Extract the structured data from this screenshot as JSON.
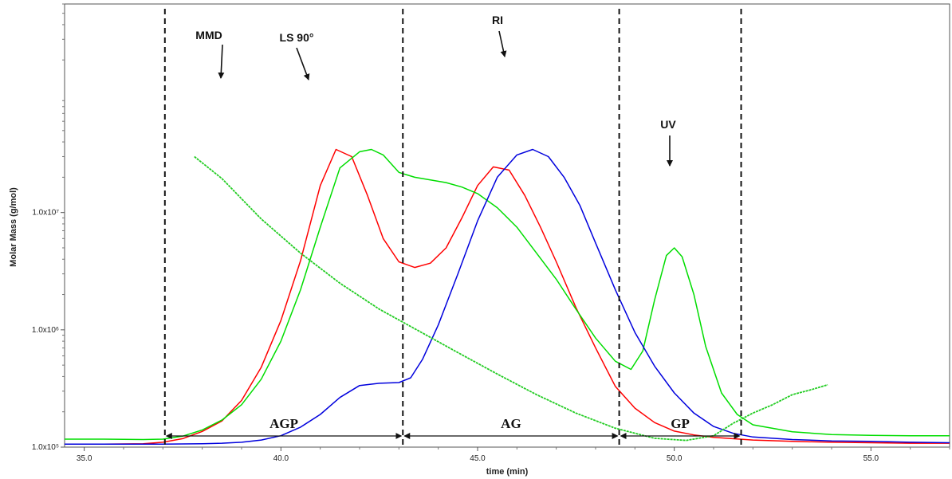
{
  "chart_data": {
    "type": "line",
    "title": "",
    "xlabel": "time (min)",
    "ylabel": "Molar Mass (g/mol)",
    "xlim": [
      34.5,
      57.0
    ],
    "ylim": [
      100000,
      600000000
    ],
    "y_scale": "log",
    "grid": false,
    "x_ticks": [
      35,
      40,
      45,
      50,
      55
    ],
    "x_tick_labels": [
      "35.0",
      "40.0",
      "45.0",
      "50.0",
      "55.0"
    ],
    "y_ticks": [
      100000,
      1000000,
      10000000
    ],
    "y_tick_labels": [
      "1.0x10⁵",
      "1.0x10⁶",
      "1.0x10⁷"
    ],
    "series": [
      {
        "name": "LS 90°",
        "color": "#ff0000",
        "x": [
          34.5,
          35.5,
          36.5,
          37.0,
          37.5,
          38.0,
          38.5,
          39.0,
          39.5,
          40.0,
          40.5,
          41.0,
          41.4,
          41.8,
          42.2,
          42.6,
          43.0,
          43.4,
          43.8,
          44.2,
          44.6,
          45.0,
          45.4,
          45.8,
          46.2,
          46.6,
          47.0,
          47.5,
          48.0,
          48.5,
          49.0,
          49.5,
          50.0,
          50.5,
          51.0,
          52.0,
          53.0,
          54.0,
          55.0,
          56.0,
          57.0
        ],
        "y": [
          106000,
          106000,
          107000,
          110000,
          118000,
          136000,
          167000,
          250000,
          480000,
          1200000,
          3900000,
          17000000,
          34500000,
          30000000,
          14000000,
          6000000,
          3800000,
          3400000,
          3700000,
          5000000,
          9000000,
          17000000,
          24500000,
          23000000,
          14000000,
          7500000,
          3800000,
          1550000,
          700000,
          330000,
          215000,
          162000,
          137000,
          127000,
          121000,
          115000,
          112000,
          110000,
          109000,
          108000,
          108000
        ]
      },
      {
        "name": "",
        "color": "#00dd00",
        "x": [
          34.5,
          35.5,
          36.5,
          37.0,
          37.5,
          38.0,
          38.5,
          39.0,
          39.5,
          40.0,
          40.5,
          41.0,
          41.5,
          42.0,
          42.3,
          42.6,
          43.0,
          43.4,
          43.8,
          44.2,
          44.6,
          45.0,
          45.5,
          46.0,
          46.5,
          47.0,
          47.5,
          48.0,
          48.5,
          48.9,
          49.2,
          49.5,
          49.8,
          50.0,
          50.2,
          50.5,
          50.8,
          51.2,
          51.6,
          52.0,
          53.0,
          54.0,
          55.0,
          56.0,
          57.0
        ],
        "y": [
          117000,
          117000,
          116000,
          117000,
          124000,
          140000,
          170000,
          230000,
          380000,
          800000,
          2200000,
          7500000,
          24000000,
          33000000,
          34500000,
          31000000,
          22000000,
          20000000,
          19000000,
          18000000,
          16500000,
          14500000,
          11000000,
          7500000,
          4500000,
          2700000,
          1500000,
          850000,
          540000,
          460000,
          660000,
          1800000,
          4300000,
          5000000,
          4200000,
          2000000,
          720000,
          290000,
          190000,
          155000,
          135000,
          128000,
          126000,
          125000,
          125000
        ]
      },
      {
        "name": "RI",
        "color": "#0000dd",
        "x": [
          34.5,
          35.5,
          36.5,
          37.0,
          38.0,
          38.5,
          39.0,
          39.5,
          40.0,
          40.5,
          41.0,
          41.5,
          42.0,
          42.5,
          43.0,
          43.3,
          43.6,
          44.0,
          44.5,
          45.0,
          45.5,
          46.0,
          46.4,
          46.8,
          47.2,
          47.6,
          48.0,
          48.5,
          49.0,
          49.5,
          50.0,
          50.5,
          51.0,
          51.5,
          52.0,
          53.0,
          54.0,
          55.0,
          56.0,
          57.0
        ],
        "y": [
          106000,
          106000,
          106000,
          106000,
          107000,
          108000,
          110000,
          115000,
          125000,
          148000,
          190000,
          265000,
          335000,
          350000,
          355000,
          390000,
          560000,
          1100000,
          3000000,
          8500000,
          20000000,
          31000000,
          34500000,
          30000000,
          20000000,
          11500000,
          5500000,
          2200000,
          950000,
          490000,
          290000,
          195000,
          150000,
          131000,
          122000,
          116000,
          113000,
          112000,
          110000,
          109000
        ]
      },
      {
        "name": "MMD",
        "color": "#22cc22",
        "x": [
          37.8,
          38.5,
          39.5,
          40.5,
          41.5,
          42.5,
          43.5,
          44.5,
          45.5,
          46.5,
          47.5,
          48.5,
          49.5,
          50.3,
          51.0,
          51.5,
          52.0,
          52.5,
          53.0,
          53.5,
          53.9
        ],
        "y": [
          30000000,
          19500000,
          8800000,
          4500000,
          2500000,
          1500000,
          980000,
          640000,
          420000,
          280000,
          195000,
          145000,
          119000,
          114000,
          125000,
          160000,
          195000,
          230000,
          280000,
          310000,
          340000
        ]
      },
      {
        "name": "UV",
        "color": "#00dd00"
      }
    ],
    "regions": [
      {
        "label": "AGP",
        "x_start": 37.05,
        "x_end": 43.1
      },
      {
        "label": "AG",
        "x_start": 43.1,
        "x_end": 48.6
      },
      {
        "label": "GP",
        "x_start": 48.6,
        "x_end": 51.7
      }
    ],
    "region_boundaries": [
      37.05,
      43.1,
      48.6,
      51.7
    ],
    "annotations": [
      {
        "text": "MMD",
        "x": 38.6,
        "y": 19500000
      },
      {
        "text": "LS 90°",
        "x": 40.8,
        "y": 14000000
      },
      {
        "text": "RI",
        "x": 45.9,
        "y": 28000000
      },
      {
        "text": "UV",
        "x": 49.9,
        "y": 5500000
      }
    ]
  }
}
